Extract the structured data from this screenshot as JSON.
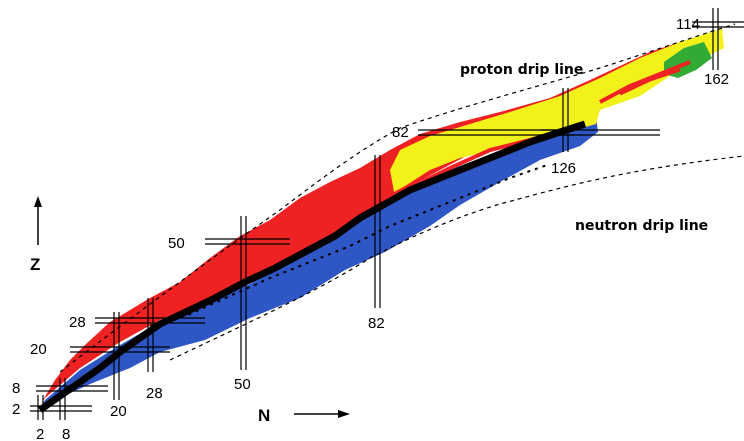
{
  "magic_numbers": {
    "proton": [
      "2",
      "8",
      "20",
      "28",
      "50",
      "82",
      "114"
    ],
    "neutron": [
      "2",
      "8",
      "20",
      "28",
      "50",
      "82",
      "126",
      "162"
    ]
  },
  "labels": {
    "proton_drip_line": "proton drip line",
    "neutron_drip_line": "neutron drip line",
    "z_axis": "Z",
    "n_axis": "N"
  },
  "colors": {
    "neutron_rich": "#2e56c4",
    "proton_rich": "#ee2222",
    "alpha": "#f2f21a",
    "fission": "#33aa33",
    "stable": "#000000",
    "drip_line": "#000000"
  }
}
